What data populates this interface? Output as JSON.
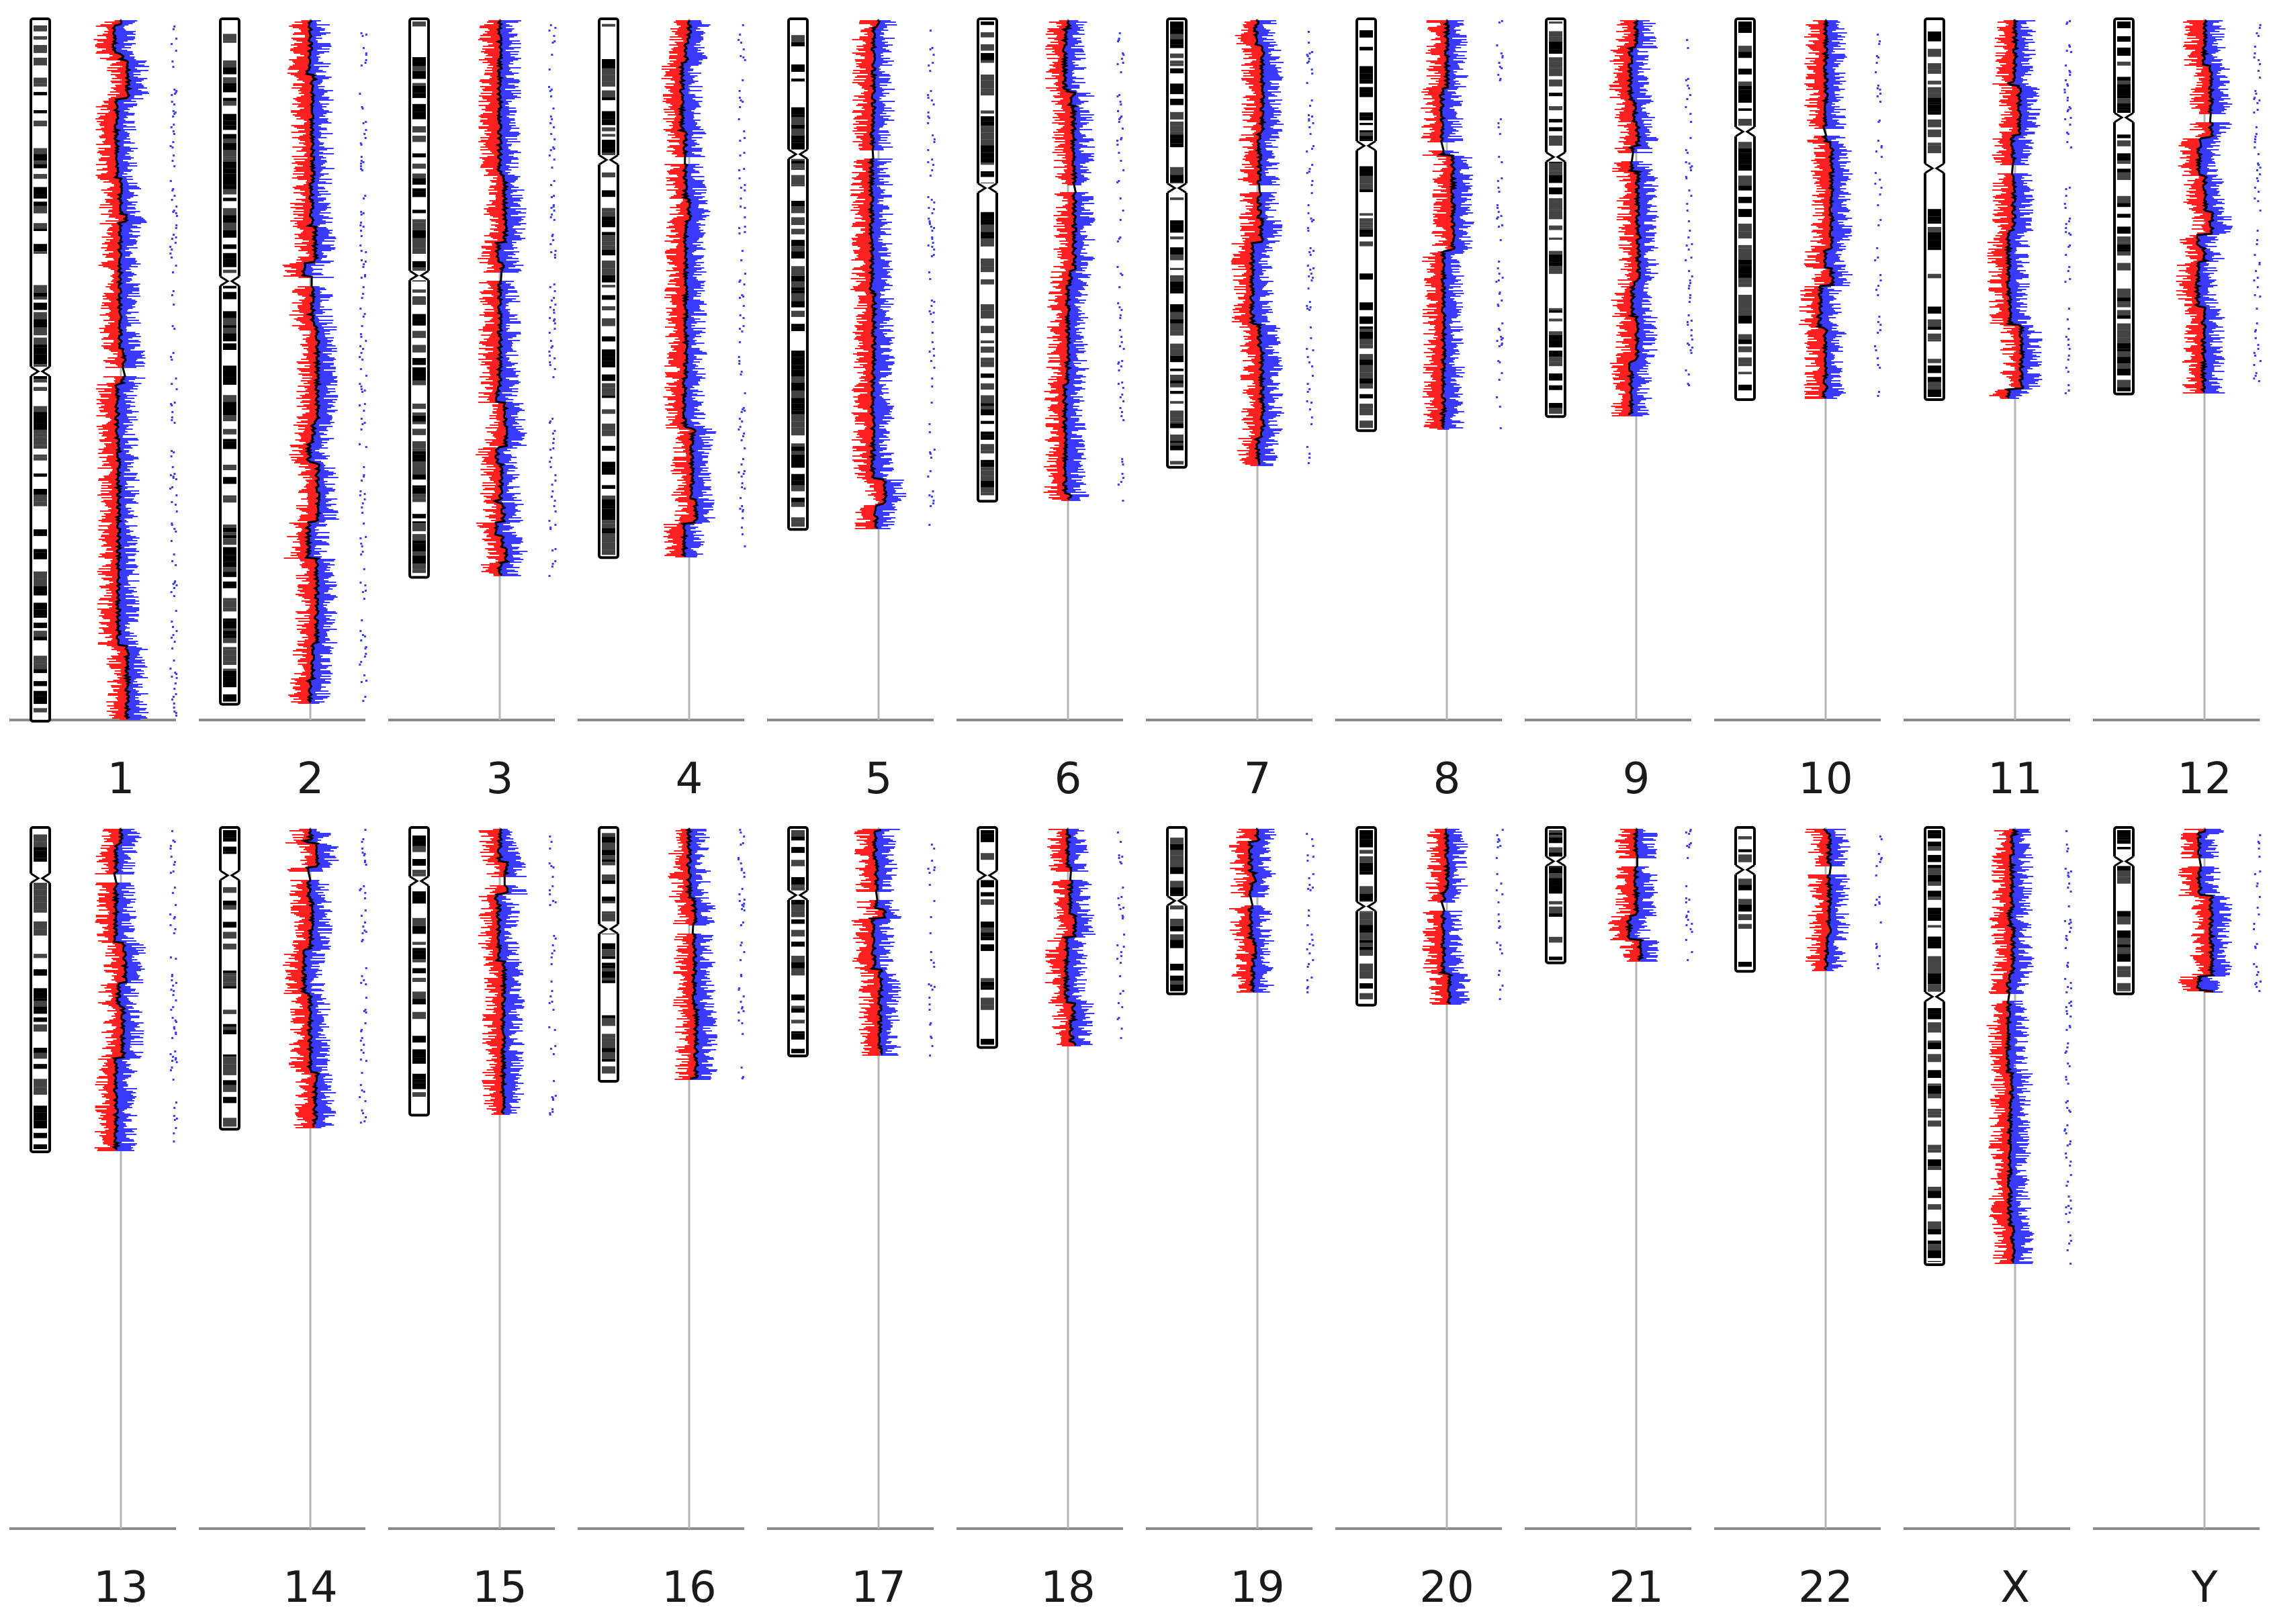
{
  "rows": [
    {
      "chromosomes": [
        {
          "label": "1",
          "length": 249,
          "centromere": 125
        },
        {
          "label": "2",
          "length": 243,
          "centromere": 93
        },
        {
          "label": "3",
          "length": 198,
          "centromere": 91
        },
        {
          "label": "4",
          "length": 191,
          "centromere": 50
        },
        {
          "label": "5",
          "length": 181,
          "centromere": 48
        },
        {
          "label": "6",
          "length": 171,
          "centromere": 60
        },
        {
          "label": "7",
          "length": 159,
          "centromere": 60
        },
        {
          "label": "8",
          "length": 146,
          "centromere": 45
        },
        {
          "label": "9",
          "length": 141,
          "centromere": 49
        },
        {
          "label": "10",
          "length": 135,
          "centromere": 40
        },
        {
          "label": "11",
          "length": 135,
          "centromere": 53
        },
        {
          "label": "12",
          "length": 133,
          "centromere": 35
        }
      ]
    },
    {
      "chromosomes": [
        {
          "label": "13",
          "length": 115,
          "centromere": 18
        },
        {
          "label": "14",
          "length": 107,
          "centromere": 17
        },
        {
          "label": "15",
          "length": 102,
          "centromere": 19
        },
        {
          "label": "16",
          "length": 90,
          "centromere": 36
        },
        {
          "label": "17",
          "length": 81,
          "centromere": 24
        },
        {
          "label": "18",
          "length": 78,
          "centromere": 17
        },
        {
          "label": "19",
          "length": 59,
          "centromere": 26
        },
        {
          "label": "20",
          "length": 63,
          "centromere": 28
        },
        {
          "label": "21",
          "length": 48,
          "centromere": 12
        },
        {
          "label": "22",
          "length": 51,
          "centromere": 15
        },
        {
          "label": "X",
          "length": 155,
          "centromere": 60
        },
        {
          "label": "Y",
          "length": 59,
          "centromere": 12
        }
      ]
    }
  ],
  "colors": {
    "loss": "#ff2020",
    "gain": "#3a3aff",
    "segment": "#000000",
    "ideogram_band": "#000000",
    "axis": "#b4b4b4",
    "baseline": "#8c8c8c",
    "label": "#1a1a1a"
  }
}
